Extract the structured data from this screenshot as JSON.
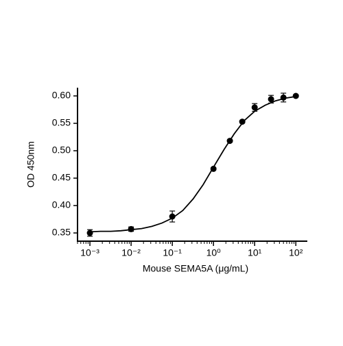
{
  "chart_data": {
    "type": "scatter",
    "x_label": "Mouse SEMA5A (μg/mL)",
    "y_label": "OD 450nm",
    "xscale": "log",
    "log_minor_ticks": true,
    "xlim": [
      0.0005,
      190
    ],
    "ylim": [
      0.335,
      0.615
    ],
    "xticks": [
      {
        "value": 0.001,
        "label": "10⁻³"
      },
      {
        "value": 0.01,
        "label": "10⁻²"
      },
      {
        "value": 0.1,
        "label": "10⁻¹"
      },
      {
        "value": 1,
        "label": "10⁰"
      },
      {
        "value": 10,
        "label": "10¹"
      },
      {
        "value": 100,
        "label": "10²"
      }
    ],
    "yticks": [
      0.35,
      {
        "value": 0.4,
        "label": "0.40"
      },
      0.45,
      {
        "value": 0.5,
        "label": "0.50"
      },
      0.55,
      {
        "value": 0.6,
        "label": "0.60"
      }
    ],
    "color": "#000000",
    "x": [
      0.001,
      0.01,
      0.1,
      1,
      2.5,
      5,
      10,
      25,
      50,
      100
    ],
    "values": [
      0.35,
      0.357,
      0.38,
      0.467,
      0.518,
      0.553,
      0.579,
      0.594,
      0.597,
      0.6
    ],
    "errors": [
      0.006,
      0.004,
      0.01,
      0.002,
      0.002,
      0.002,
      0.007,
      0.007,
      0.008,
      0.002
    ],
    "fit": {
      "x": [
        0.001,
        0.0018,
        0.0032,
        0.0056,
        0.01,
        0.018,
        0.032,
        0.056,
        0.1,
        0.18,
        0.32,
        0.56,
        1,
        1.8,
        3.2,
        5.6,
        10,
        18,
        32,
        56,
        100
      ],
      "values": [
        0.352,
        0.353,
        0.353,
        0.354,
        0.356,
        0.358,
        0.362,
        0.368,
        0.377,
        0.391,
        0.412,
        0.438,
        0.47,
        0.502,
        0.531,
        0.555,
        0.572,
        0.583,
        0.591,
        0.596,
        0.599
      ]
    }
  }
}
